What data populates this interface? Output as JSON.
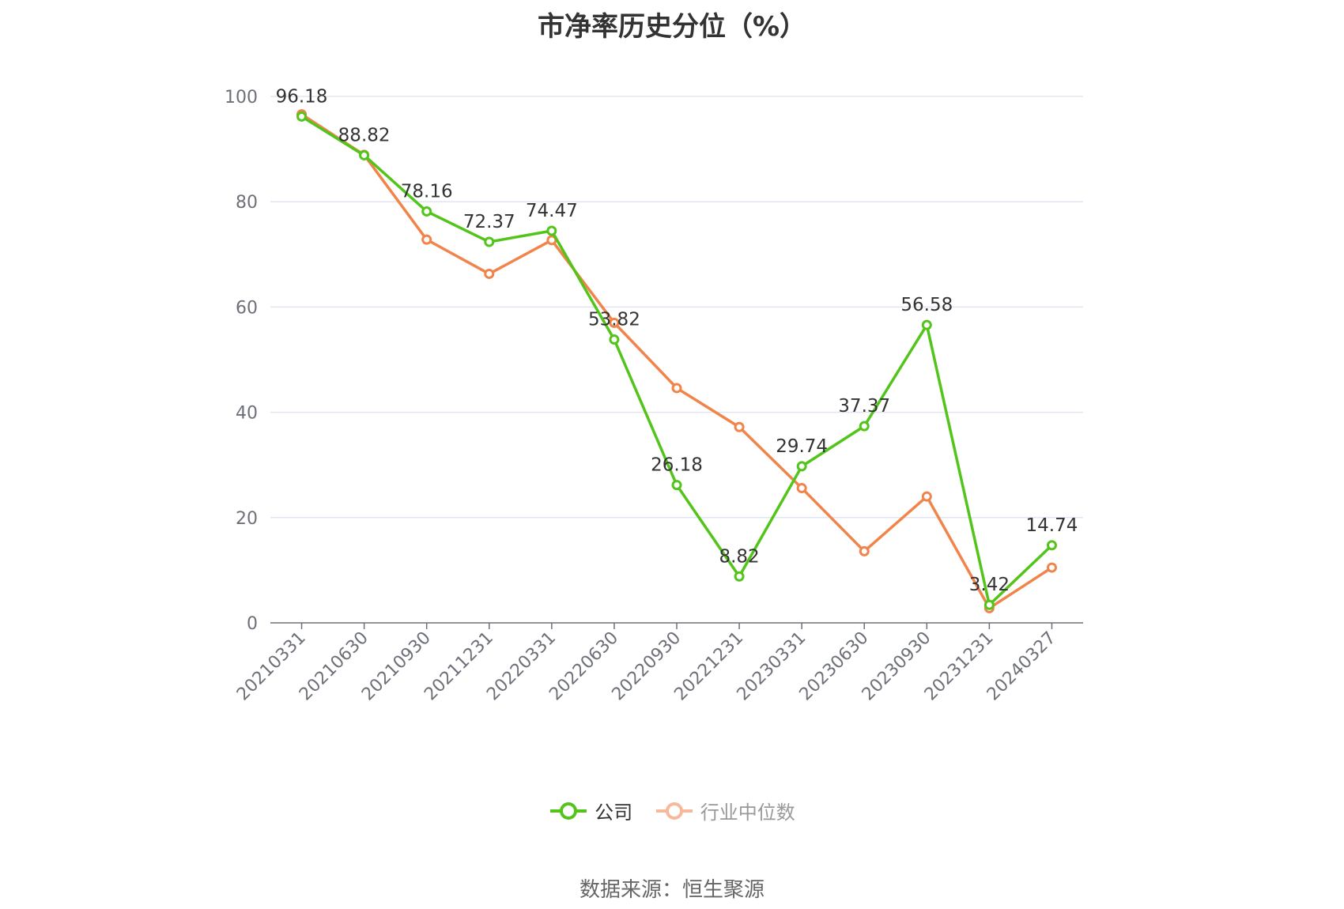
{
  "chart_data": {
    "type": "line",
    "title": "市净率历史分位（%）",
    "categories": [
      "20210331",
      "20210630",
      "20210930",
      "20211231",
      "20220331",
      "20220630",
      "20220930",
      "20221231",
      "20230331",
      "20230630",
      "20230930",
      "20231231",
      "20240327"
    ],
    "ylim": [
      0,
      100
    ],
    "yticks": [
      0,
      20,
      40,
      60,
      80,
      100
    ],
    "grid": true,
    "legend_position": "bottom",
    "series": [
      {
        "name": "公司",
        "color": "#52c41a",
        "values": [
          96.18,
          88.82,
          78.16,
          72.37,
          74.47,
          53.82,
          26.18,
          8.82,
          29.74,
          37.37,
          56.58,
          3.42,
          14.74
        ],
        "labels": [
          "96.18",
          "88.82",
          "78.16",
          "72.37",
          "74.47",
          "53.82",
          "26.18",
          "8.82",
          "29.74",
          "37.37",
          "56.58",
          "3.42",
          "14.74"
        ]
      },
      {
        "name": "行业中位数",
        "color": "#f0844a",
        "values": [
          96.6,
          88.9,
          72.8,
          66.3,
          72.7,
          57.0,
          44.6,
          37.2,
          25.6,
          13.6,
          24.0,
          2.8,
          10.5
        ]
      }
    ]
  },
  "source": "数据来源：恒生聚源"
}
